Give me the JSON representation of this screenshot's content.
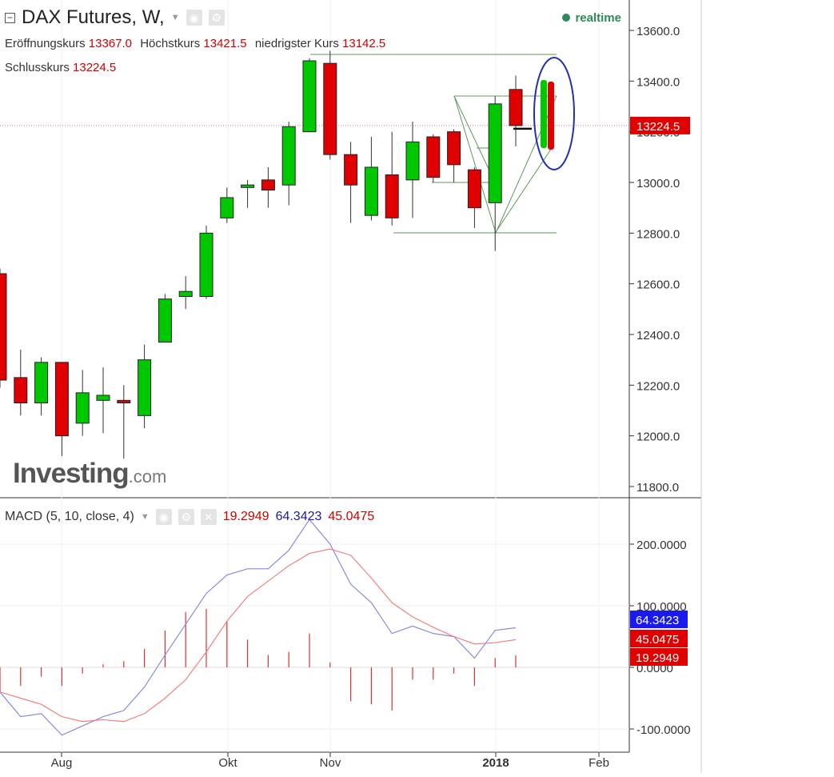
{
  "header": {
    "title": "DAX Futures, W,",
    "realtime_label": "realtime",
    "open_label": "Eröffnungskurs",
    "open_value": "13367.0",
    "high_label": "Höchstkurs",
    "high_value": "13421.5",
    "low_label": "niedrigster Kurs",
    "low_value": "13142.5",
    "close_label": "Schlusskurs",
    "close_value": "13224.5"
  },
  "macd_legend": {
    "label": "MACD (5, 10, close, 4)",
    "value1": "19.2949",
    "value2": "64.3423",
    "value3": "45.0475"
  },
  "watermark": {
    "main": "Investing",
    "suffix": ".com"
  },
  "colors": {
    "up": "#00c800",
    "down": "#e00000",
    "macd_line": "#8a8ae0",
    "signal_line": "#f08080",
    "histogram": "#e03030",
    "trendlines": "#5a9a5a",
    "ellipse": "#2233aa"
  },
  "chart_data": [
    {
      "type": "candlestick",
      "title": "DAX Futures, W,",
      "x_ticks": [
        "Aug",
        "Okt",
        "Nov",
        "2018",
        "Feb"
      ],
      "y_ticks": [
        "11800.0",
        "12000.0",
        "12200.0",
        "12400.0",
        "12600.0",
        "12800.0",
        "13000.0",
        "13200.0",
        "13400.0",
        "13600.0"
      ],
      "ylim": [
        11780,
        13700
      ],
      "current_price_label": "13224.5",
      "candles": [
        {
          "o": 12640,
          "h": 12660,
          "l": 12190,
          "c": 12220
        },
        {
          "o": 12230,
          "h": 12340,
          "l": 12080,
          "c": 12130
        },
        {
          "o": 12130,
          "h": 12310,
          "l": 12080,
          "c": 12290
        },
        {
          "o": 12290,
          "h": 12290,
          "l": 11920,
          "c": 12000
        },
        {
          "o": 12050,
          "h": 12260,
          "l": 12000,
          "c": 12170
        },
        {
          "o": 12140,
          "h": 12270,
          "l": 12010,
          "c": 12160
        },
        {
          "o": 12140,
          "h": 12200,
          "l": 11910,
          "c": 12130
        },
        {
          "o": 12080,
          "h": 12360,
          "l": 12030,
          "c": 12300
        },
        {
          "o": 12370,
          "h": 12560,
          "l": 12370,
          "c": 12540
        },
        {
          "o": 12550,
          "h": 12630,
          "l": 12500,
          "c": 12570
        },
        {
          "o": 12550,
          "h": 12830,
          "l": 12540,
          "c": 12800
        },
        {
          "o": 12860,
          "h": 12980,
          "l": 12840,
          "c": 12940
        },
        {
          "o": 12980,
          "h": 13010,
          "l": 12900,
          "c": 12990
        },
        {
          "o": 13010,
          "h": 13060,
          "l": 12900,
          "c": 12970
        },
        {
          "o": 12990,
          "h": 13240,
          "l": 12910,
          "c": 13220
        },
        {
          "o": 13200,
          "h": 13490,
          "l": 13200,
          "c": 13480
        },
        {
          "o": 13470,
          "h": 13520,
          "l": 13090,
          "c": 13110
        },
        {
          "o": 13110,
          "h": 13160,
          "l": 12840,
          "c": 12990
        },
        {
          "o": 12870,
          "h": 13180,
          "l": 12850,
          "c": 13060
        },
        {
          "o": 13030,
          "h": 13200,
          "l": 12830,
          "c": 12860
        },
        {
          "o": 13010,
          "h": 13240,
          "l": 12860,
          "c": 13160
        },
        {
          "o": 13180,
          "h": 13190,
          "l": 13000,
          "c": 13020
        },
        {
          "o": 13200,
          "h": 13210,
          "l": 13000,
          "c": 13070
        },
        {
          "o": 13050,
          "h": 13060,
          "l": 12820,
          "c": 12900
        },
        {
          "o": 12920,
          "h": 13340,
          "l": 12730,
          "c": 13310
        },
        {
          "o": 13367,
          "h": 13421.5,
          "l": 13142.5,
          "c": 13224.5
        }
      ]
    },
    {
      "type": "line",
      "title": "MACD (5, 10, close, 4)",
      "y_ticks": [
        "-100.0000",
        "0.0000",
        "100.0000",
        "200.0000"
      ],
      "ylim": [
        -130,
        240
      ],
      "series": [
        {
          "values": [
            -40,
            -80,
            -75,
            -110,
            -95,
            -80,
            -70,
            -32,
            20,
            70,
            120,
            150,
            160,
            160,
            190,
            240,
            200,
            135,
            105,
            55,
            67,
            55,
            50,
            15,
            60,
            64.3
          ]
        },
        {
          "values": [
            -40,
            -50,
            -60,
            -80,
            -88,
            -85,
            -88,
            -75,
            -50,
            -20,
            25,
            75,
            115,
            140,
            165,
            185,
            192,
            182,
            145,
            105,
            82,
            65,
            50,
            38,
            40,
            45
          ]
        }
      ],
      "histogram": [
        -40,
        -30,
        -15,
        -30,
        -10,
        5,
        10,
        30,
        60,
        90,
        95,
        75,
        45,
        20,
        25,
        55,
        8,
        -55,
        -60,
        -70,
        -20,
        -20,
        -10,
        -30,
        15,
        19.3
      ]
    }
  ]
}
